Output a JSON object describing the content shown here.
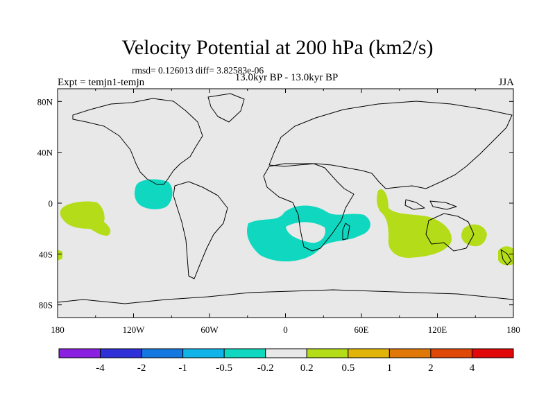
{
  "header": {
    "title": "Velocity Potential at 200 hPa (km2/s)",
    "stats": "rmsd= 0.126013  diff= 3.82583e-06",
    "experiment": "Expt = temjn1-temjn",
    "period": "13.0kyr BP - 13.0kyr BP",
    "season": "JJA"
  },
  "map": {
    "x_ticks": [
      "180",
      "120W",
      "60W",
      "0",
      "60E",
      "120E",
      "180"
    ],
    "y_ticks": [
      "80N",
      "40N",
      "0",
      "40S",
      "80S"
    ],
    "background_color": "#e8e8e8",
    "land_outline_color": "#000000"
  },
  "colorbar": {
    "colors": [
      "#8a20e0",
      "#3030d8",
      "#1478e0",
      "#10b4e8",
      "#10d8c0",
      "#e8e8e8",
      "#b4dc18",
      "#e0b408",
      "#e07808",
      "#e04808",
      "#e00808"
    ],
    "labels": [
      "-4",
      "-2",
      "-1",
      "-0.5",
      "-0.2",
      "0.2",
      "0.5",
      "1",
      "2",
      "4"
    ]
  },
  "anomaly_regions": [
    {
      "name": "central-america-pacific",
      "sign": "negative",
      "color": "#10d8c0"
    },
    {
      "name": "south-atlantic-africa",
      "sign": "negative",
      "color": "#10d8c0"
    },
    {
      "name": "southwest-pacific",
      "sign": "positive",
      "color": "#b4dc18"
    },
    {
      "name": "indian-ocean-australia",
      "sign": "positive",
      "color": "#b4dc18"
    },
    {
      "name": "east-australia",
      "sign": "positive",
      "color": "#b4dc18"
    },
    {
      "name": "new-zealand",
      "sign": "positive",
      "color": "#b4dc18"
    },
    {
      "name": "dateline-edge",
      "sign": "positive",
      "color": "#b4dc18"
    }
  ]
}
